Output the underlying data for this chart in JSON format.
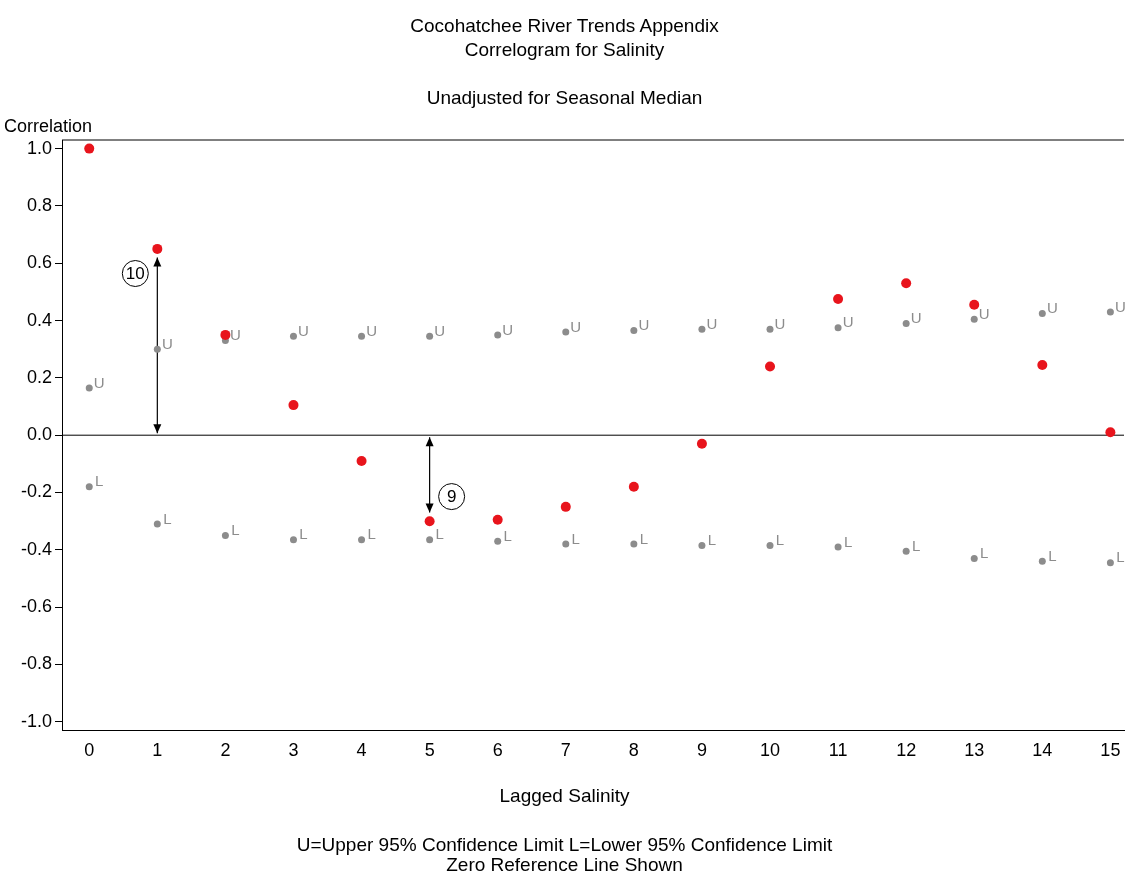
{
  "chart_data": {
    "type": "scatter",
    "title": "Cocohatchee River Trends Appendix",
    "subtitle": "Correlogram for Salinity\n\nUnadjusted for Seasonal Median",
    "xlabel": "Lagged Salinity",
    "ylabel": "Correlation",
    "x": [
      0,
      1,
      2,
      3,
      4,
      5,
      6,
      7,
      8,
      9,
      10,
      11,
      12,
      13,
      14,
      15
    ],
    "series": [
      {
        "color": "#e8141c",
        "marker": "circle",
        "values": [
          1.0,
          0.65,
          0.35,
          0.105,
          -0.09,
          -0.3,
          -0.295,
          -0.25,
          -0.18,
          -0.03,
          0.24,
          0.475,
          0.53,
          0.455,
          0.245,
          0.01
        ]
      },
      {
        "name": "U",
        "color": "#8c8c8c",
        "marker": "circle",
        "values": [
          0.165,
          0.3,
          0.33,
          0.345,
          0.345,
          0.345,
          0.35,
          0.36,
          0.365,
          0.37,
          0.37,
          0.375,
          0.39,
          0.405,
          0.425,
          0.43
        ]
      },
      {
        "name": "L",
        "color": "#8c8c8c",
        "marker": "circle",
        "values": [
          -0.18,
          -0.31,
          -0.35,
          -0.365,
          -0.365,
          -0.365,
          -0.37,
          -0.38,
          -0.38,
          -0.385,
          -0.385,
          -0.39,
          -0.405,
          -0.43,
          -0.44,
          -0.445
        ]
      }
    ],
    "xlim": [
      -0.4,
      15.2
    ],
    "xticks": [
      0,
      1,
      2,
      3,
      4,
      5,
      6,
      7,
      8,
      9,
      10,
      11,
      12,
      13,
      14,
      15
    ],
    "ylim": [
      -1.03,
      1.03
    ],
    "yticks": [
      {
        "value": -1,
        "label": "-1.0"
      },
      {
        "value": -0.8,
        "label": "-0.8"
      },
      {
        "value": -0.6,
        "label": "-0.6"
      },
      {
        "value": -0.4,
        "label": "-0.4"
      },
      {
        "value": -0.2,
        "label": "-0.2"
      },
      {
        "value": 0,
        "label": "0.0"
      },
      {
        "value": 0.2,
        "label": "0.2"
      },
      {
        "value": 0.4,
        "label": "0.4"
      },
      {
        "value": 0.6,
        "label": "0.6"
      },
      {
        "value": 0.8,
        "label": "0.8"
      },
      {
        "value": 1,
        "label": "1.0"
      }
    ],
    "grid": false,
    "legend": false,
    "ref_lines": [
      {
        "axis": "y",
        "value": 0,
        "color": "#000000"
      }
    ],
    "annotations": [
      {
        "text": "10",
        "x": 1,
        "y": 0.62
      },
      {
        "text": "9",
        "x": 5,
        "y": -0.27
      },
      "U=Upper 95% Confidence Limit    L=Lower 95% Confidence Limit",
      "Zero Reference Line  Shown"
    ]
  }
}
